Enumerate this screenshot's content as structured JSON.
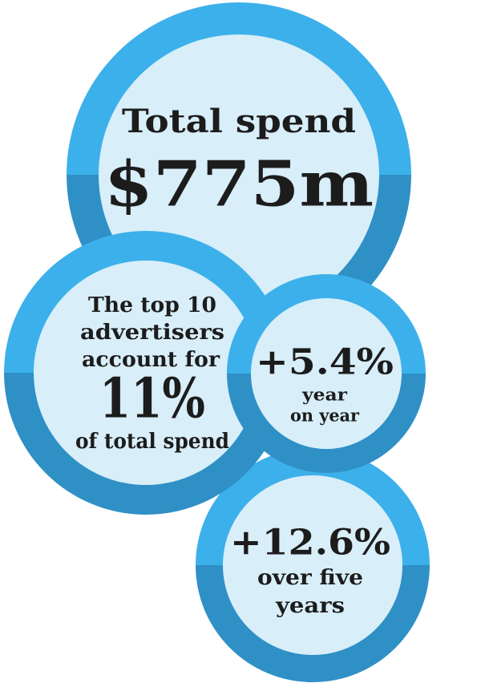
{
  "circles": [
    {
      "lines": [
        "Total spend",
        "$775m"
      ]
    },
    {
      "lines": [
        "The top 10",
        "advertisers",
        "account for",
        "11%",
        "of total spend"
      ]
    },
    {
      "lines": [
        "+5.4%",
        "year",
        "on year"
      ]
    },
    {
      "lines": [
        "+12.6%",
        "over five",
        "years"
      ]
    }
  ]
}
